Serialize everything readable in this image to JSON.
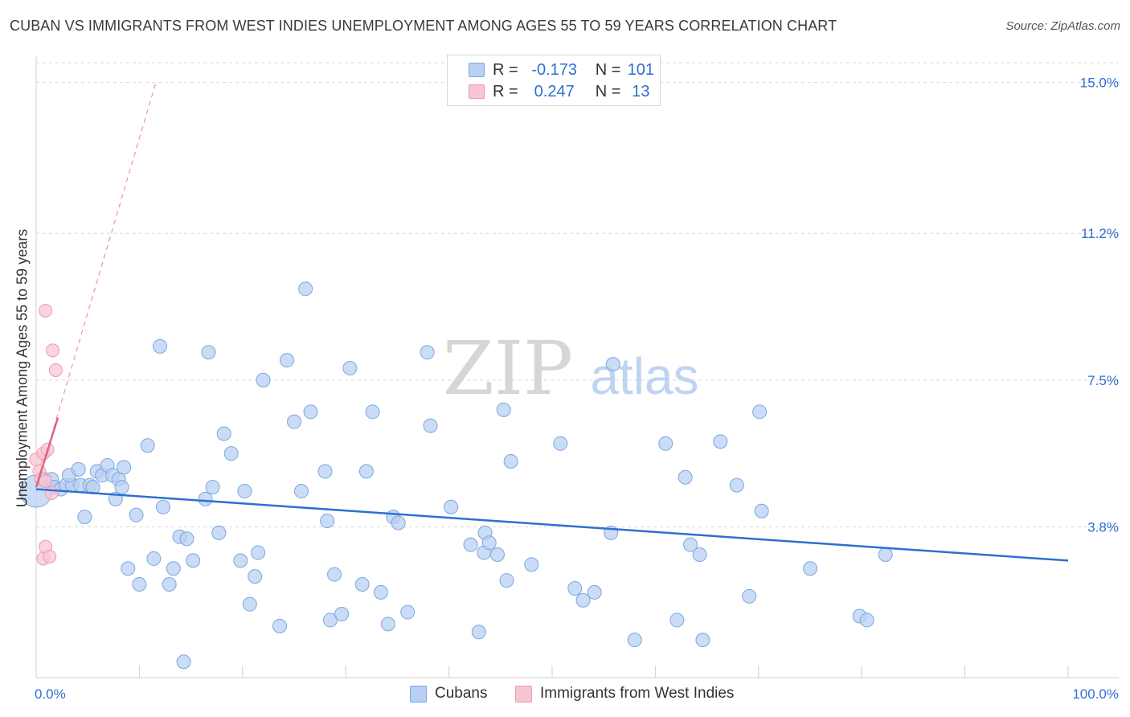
{
  "title": "CUBAN VS IMMIGRANTS FROM WEST INDIES UNEMPLOYMENT AMONG AGES 55 TO 59 YEARS CORRELATION CHART",
  "source": "Source: ZipAtlas.com",
  "legend": {
    "rows": [
      {
        "r_label": "R =",
        "r_value": "-0.173",
        "n_label": "N =",
        "n_value": "101"
      },
      {
        "r_label": "R =",
        "r_value": "0.247",
        "n_label": "N =",
        "n_value": "13"
      }
    ],
    "bottom": [
      "Cubans",
      "Immigrants from West Indies"
    ]
  },
  "watermark": {
    "zip": "ZIP",
    "atlas": "atlas"
  },
  "colors": {
    "cubans_fill": "#b8d0f3",
    "cubans_stroke": "#7ea6e0",
    "cubans_line": "#2f6fd0",
    "wi_fill": "#f8c5d3",
    "wi_stroke": "#ec9ab1",
    "wi_line": "#e0608a",
    "tick_label": "#2f6fd0",
    "grid": "#d9d9d9"
  },
  "chart_data": {
    "type": "scatter",
    "title": "CUBAN VS IMMIGRANTS FROM WEST INDIES UNEMPLOYMENT AMONG AGES 55 TO 59 YEARS CORRELATION CHART",
    "xlabel": "",
    "ylabel": "Unemployment Among Ages 55 to 59 years",
    "xlim": [
      0,
      100
    ],
    "ylim": [
      0,
      15.5
    ],
    "x_tick_labels": [
      "0.0%",
      "100.0%"
    ],
    "y_ticks": [
      3.8,
      7.5,
      11.2,
      15.0
    ],
    "y_tick_labels": [
      "3.8%",
      "7.5%",
      "11.2%",
      "15.0%"
    ],
    "grid": true,
    "legend_position": "top-center",
    "series": [
      {
        "name": "Cubans",
        "R": -0.173,
        "N": 101,
        "trend": {
          "x": [
            0,
            100
          ],
          "y": [
            4.75,
            2.95
          ]
        },
        "points": [
          {
            "x": 0.0,
            "y": 4.7
          },
          {
            "x": 0.8,
            "y": 5.0
          },
          {
            "x": 1.5,
            "y": 5.0
          },
          {
            "x": 1.8,
            "y": 4.8
          },
          {
            "x": 2.4,
            "y": 4.75
          },
          {
            "x": 2.9,
            "y": 4.85
          },
          {
            "x": 3.5,
            "y": 4.85
          },
          {
            "x": 3.2,
            "y": 5.1
          },
          {
            "x": 4.1,
            "y": 5.25
          },
          {
            "x": 4.3,
            "y": 4.85
          },
          {
            "x": 4.7,
            "y": 4.05
          },
          {
            "x": 5.2,
            "y": 4.85
          },
          {
            "x": 5.5,
            "y": 4.8
          },
          {
            "x": 5.9,
            "y": 5.2
          },
          {
            "x": 6.4,
            "y": 5.1
          },
          {
            "x": 6.9,
            "y": 5.35
          },
          {
            "x": 7.4,
            "y": 5.1
          },
          {
            "x": 7.7,
            "y": 4.5
          },
          {
            "x": 8.0,
            "y": 5.0
          },
          {
            "x": 8.3,
            "y": 4.8
          },
          {
            "x": 8.5,
            "y": 5.3
          },
          {
            "x": 8.9,
            "y": 2.75
          },
          {
            "x": 9.7,
            "y": 4.1
          },
          {
            "x": 10.0,
            "y": 2.35
          },
          {
            "x": 10.8,
            "y": 5.85
          },
          {
            "x": 11.4,
            "y": 3.0
          },
          {
            "x": 12.0,
            "y": 8.35
          },
          {
            "x": 12.3,
            "y": 4.3
          },
          {
            "x": 12.9,
            "y": 2.35
          },
          {
            "x": 13.3,
            "y": 2.75
          },
          {
            "x": 13.9,
            "y": 3.55
          },
          {
            "x": 14.3,
            "y": 0.4
          },
          {
            "x": 14.6,
            "y": 3.5
          },
          {
            "x": 15.2,
            "y": 2.95
          },
          {
            "x": 16.4,
            "y": 4.5
          },
          {
            "x": 16.7,
            "y": 8.2
          },
          {
            "x": 17.1,
            "y": 4.8
          },
          {
            "x": 17.7,
            "y": 3.65
          },
          {
            "x": 18.2,
            "y": 6.15
          },
          {
            "x": 18.9,
            "y": 5.65
          },
          {
            "x": 19.8,
            "y": 2.95
          },
          {
            "x": 20.2,
            "y": 4.7
          },
          {
            "x": 20.7,
            "y": 1.85
          },
          {
            "x": 21.2,
            "y": 2.55
          },
          {
            "x": 21.5,
            "y": 3.15
          },
          {
            "x": 22.0,
            "y": 7.5
          },
          {
            "x": 23.6,
            "y": 1.3
          },
          {
            "x": 24.3,
            "y": 8.0
          },
          {
            "x": 25.0,
            "y": 6.45
          },
          {
            "x": 25.7,
            "y": 4.7
          },
          {
            "x": 26.1,
            "y": 9.8
          },
          {
            "x": 26.6,
            "y": 6.7
          },
          {
            "x": 28.0,
            "y": 5.2
          },
          {
            "x": 28.2,
            "y": 3.95
          },
          {
            "x": 28.5,
            "y": 1.45
          },
          {
            "x": 28.9,
            "y": 2.6
          },
          {
            "x": 29.6,
            "y": 1.6
          },
          {
            "x": 30.4,
            "y": 7.8
          },
          {
            "x": 31.6,
            "y": 2.35
          },
          {
            "x": 32.0,
            "y": 5.2
          },
          {
            "x": 32.6,
            "y": 6.7
          },
          {
            "x": 33.4,
            "y": 2.15
          },
          {
            "x": 34.1,
            "y": 1.35
          },
          {
            "x": 34.6,
            "y": 4.05
          },
          {
            "x": 35.1,
            "y": 3.9
          },
          {
            "x": 36.0,
            "y": 1.65
          },
          {
            "x": 37.9,
            "y": 8.2
          },
          {
            "x": 38.2,
            "y": 6.35
          },
          {
            "x": 40.2,
            "y": 4.3
          },
          {
            "x": 42.1,
            "y": 3.35
          },
          {
            "x": 42.9,
            "y": 1.15
          },
          {
            "x": 43.4,
            "y": 3.15
          },
          {
            "x": 43.5,
            "y": 3.65
          },
          {
            "x": 43.9,
            "y": 3.4
          },
          {
            "x": 44.7,
            "y": 3.1
          },
          {
            "x": 45.3,
            "y": 6.75
          },
          {
            "x": 45.6,
            "y": 2.45
          },
          {
            "x": 46.0,
            "y": 5.45
          },
          {
            "x": 48.0,
            "y": 2.85
          },
          {
            "x": 50.8,
            "y": 5.9
          },
          {
            "x": 52.2,
            "y": 2.25
          },
          {
            "x": 53.0,
            "y": 1.95
          },
          {
            "x": 54.1,
            "y": 2.15
          },
          {
            "x": 55.7,
            "y": 3.65
          },
          {
            "x": 55.9,
            "y": 7.9
          },
          {
            "x": 58.0,
            "y": 0.95
          },
          {
            "x": 61.0,
            "y": 5.9
          },
          {
            "x": 62.1,
            "y": 1.45
          },
          {
            "x": 62.9,
            "y": 5.05
          },
          {
            "x": 63.4,
            "y": 3.35
          },
          {
            "x": 64.3,
            "y": 3.1
          },
          {
            "x": 64.6,
            "y": 0.95
          },
          {
            "x": 66.3,
            "y": 5.95
          },
          {
            "x": 67.9,
            "y": 4.85
          },
          {
            "x": 69.1,
            "y": 2.05
          },
          {
            "x": 70.1,
            "y": 6.7
          },
          {
            "x": 70.3,
            "y": 4.2
          },
          {
            "x": 75.0,
            "y": 2.75
          },
          {
            "x": 79.8,
            "y": 1.55
          },
          {
            "x": 80.5,
            "y": 1.45
          },
          {
            "x": 82.3,
            "y": 3.1
          }
        ]
      },
      {
        "name": "Immigrants from West Indies",
        "R": 0.247,
        "N": 13,
        "trend_solid": {
          "x": [
            0,
            2.1
          ],
          "y": [
            4.8,
            6.55
          ]
        },
        "trend_dashed": {
          "x": [
            0,
            11.6
          ],
          "y": [
            4.8,
            15.0
          ]
        },
        "points": [
          {
            "x": 0.0,
            "y": 5.5
          },
          {
            "x": 0.3,
            "y": 5.2
          },
          {
            "x": 0.5,
            "y": 5.0
          },
          {
            "x": 0.7,
            "y": 5.65
          },
          {
            "x": 0.9,
            "y": 4.95
          },
          {
            "x": 1.1,
            "y": 5.75
          },
          {
            "x": 1.5,
            "y": 4.65
          },
          {
            "x": 0.9,
            "y": 3.3
          },
          {
            "x": 0.7,
            "y": 3.0
          },
          {
            "x": 1.3,
            "y": 3.05
          },
          {
            "x": 0.9,
            "y": 9.25
          },
          {
            "x": 1.6,
            "y": 8.25
          },
          {
            "x": 1.9,
            "y": 7.75
          }
        ]
      }
    ]
  }
}
